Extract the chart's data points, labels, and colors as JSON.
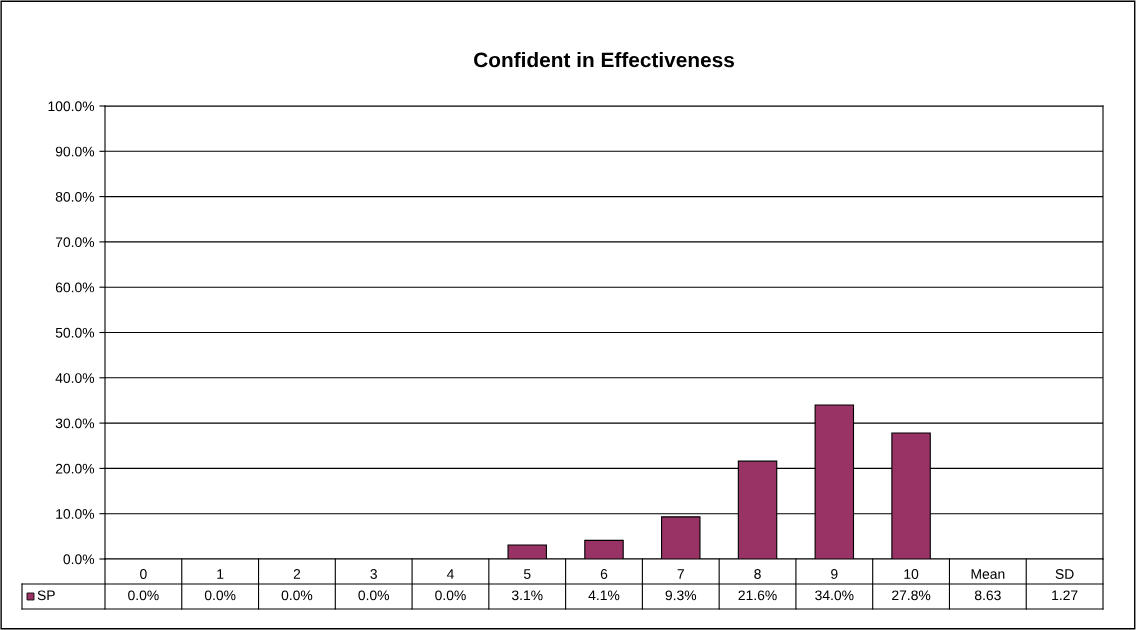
{
  "chart_data": {
    "type": "bar",
    "title": "Confident in Effectiveness",
    "categories": [
      "0",
      "1",
      "2",
      "3",
      "4",
      "5",
      "6",
      "7",
      "8",
      "9",
      "10",
      "Mean",
      "SD"
    ],
    "series": [
      {
        "name": "SP",
        "color": "#993366",
        "values": [
          0.0,
          0.0,
          0.0,
          0.0,
          0.0,
          3.1,
          4.1,
          9.3,
          21.6,
          34.0,
          27.8,
          null,
          null
        ],
        "value_labels": [
          "0.0%",
          "0.0%",
          "0.0%",
          "0.0%",
          "0.0%",
          "3.1%",
          "4.1%",
          "9.3%",
          "21.6%",
          "34.0%",
          "27.8%",
          "8.63",
          "1.27"
        ]
      }
    ],
    "ylim": [
      0,
      100
    ],
    "yticks": [
      {
        "value": 0,
        "label": "0.0%"
      },
      {
        "value": 10,
        "label": "10.0%"
      },
      {
        "value": 20,
        "label": "20.0%"
      },
      {
        "value": 30,
        "label": "30.0%"
      },
      {
        "value": 40,
        "label": "40.0%"
      },
      {
        "value": 50,
        "label": "50.0%"
      },
      {
        "value": 60,
        "label": "60.0%"
      },
      {
        "value": 70,
        "label": "70.0%"
      },
      {
        "value": 80,
        "label": "80.0%"
      },
      {
        "value": 90,
        "label": "90.0%"
      },
      {
        "value": 100,
        "label": "100.0%"
      }
    ],
    "grid": "y",
    "legend": "bottom"
  }
}
